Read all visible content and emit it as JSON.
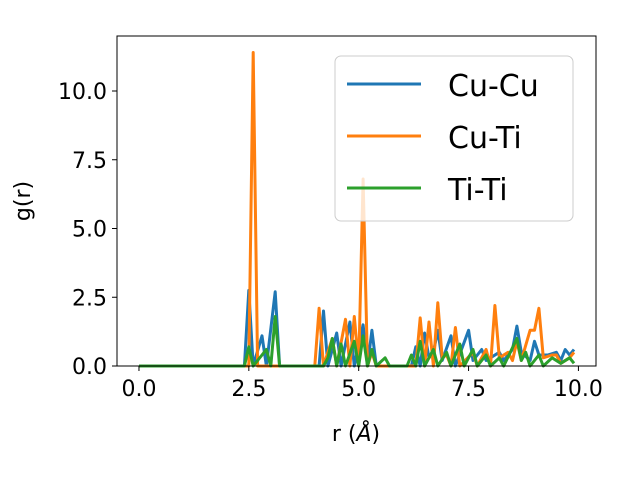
{
  "chart_data": {
    "type": "line",
    "xlabel": "r (",
    "xlabel_symbol": "Å",
    "xlabel_end": ")",
    "ylabel": "g(r)",
    "xlim": [
      -0.5,
      10.4
    ],
    "ylim": [
      0.0,
      12.0
    ],
    "xticks": [
      0.0,
      2.5,
      5.0,
      7.5,
      10.0
    ],
    "xtick_labels": [
      "0.0",
      "2.5",
      "5.0",
      "7.5",
      "10.0"
    ],
    "yticks": [
      0.0,
      2.5,
      5.0,
      7.5,
      10.0
    ],
    "ytick_labels": [
      "0.0",
      "2.5",
      "5.0",
      "7.5",
      "10.0"
    ],
    "grid": false,
    "legend_position": "top-right",
    "series": [
      {
        "name": "Cu-Cu",
        "color": "#1f77b4",
        "points": [
          [
            0.0,
            0
          ],
          [
            2.4,
            0
          ],
          [
            2.5,
            2.75
          ],
          [
            2.6,
            0
          ],
          [
            2.8,
            1.1
          ],
          [
            2.9,
            0
          ],
          [
            3.1,
            2.7
          ],
          [
            3.2,
            0
          ],
          [
            4.1,
            0
          ],
          [
            4.2,
            2.0
          ],
          [
            4.3,
            0
          ],
          [
            4.5,
            1.2
          ],
          [
            4.6,
            0
          ],
          [
            4.8,
            1.6
          ],
          [
            4.9,
            0
          ],
          [
            5.1,
            1.5
          ],
          [
            5.2,
            0
          ],
          [
            5.3,
            1.3
          ],
          [
            5.4,
            0
          ],
          [
            6.2,
            0
          ],
          [
            6.3,
            0.7
          ],
          [
            6.4,
            0
          ],
          [
            6.5,
            1.2
          ],
          [
            6.6,
            0.3
          ],
          [
            6.7,
            0.5
          ],
          [
            6.8,
            1.3
          ],
          [
            6.9,
            0.2
          ],
          [
            7.1,
            1.1
          ],
          [
            7.2,
            0
          ],
          [
            7.5,
            1.3
          ],
          [
            7.6,
            0.2
          ],
          [
            7.8,
            0.6
          ],
          [
            7.9,
            0.2
          ],
          [
            8.2,
            0.5
          ],
          [
            8.3,
            0.2
          ],
          [
            8.5,
            0.6
          ],
          [
            8.6,
            1.45
          ],
          [
            8.7,
            0.5
          ],
          [
            8.9,
            0.2
          ],
          [
            9.0,
            0.9
          ],
          [
            9.1,
            0.4
          ],
          [
            9.3,
            0.4
          ],
          [
            9.5,
            0.5
          ],
          [
            9.6,
            0.2
          ],
          [
            9.7,
            0.6
          ],
          [
            9.8,
            0.4
          ],
          [
            9.9,
            0.6
          ]
        ]
      },
      {
        "name": "Cu-Ti",
        "color": "#ff7f0e",
        "points": [
          [
            0.0,
            0
          ],
          [
            2.5,
            0
          ],
          [
            2.6,
            11.4
          ],
          [
            2.7,
            0
          ],
          [
            4.0,
            0
          ],
          [
            4.1,
            2.1
          ],
          [
            4.2,
            0
          ],
          [
            4.4,
            1.0
          ],
          [
            4.5,
            0
          ],
          [
            4.7,
            1.7
          ],
          [
            4.8,
            0
          ],
          [
            4.9,
            1.8
          ],
          [
            5.0,
            0
          ],
          [
            5.1,
            6.8
          ],
          [
            5.2,
            0
          ],
          [
            5.3,
            0.5
          ],
          [
            5.4,
            0
          ],
          [
            6.3,
            0
          ],
          [
            6.4,
            1.75
          ],
          [
            6.5,
            0
          ],
          [
            6.6,
            1.6
          ],
          [
            6.7,
            0
          ],
          [
            6.8,
            2.3
          ],
          [
            6.9,
            0.3
          ],
          [
            7.0,
            0.4
          ],
          [
            7.1,
            0
          ],
          [
            7.2,
            1.4
          ],
          [
            7.3,
            0
          ],
          [
            7.6,
            0.5
          ],
          [
            7.7,
            0
          ],
          [
            7.9,
            0.6
          ],
          [
            8.0,
            0
          ],
          [
            8.1,
            2.2
          ],
          [
            8.2,
            0.3
          ],
          [
            8.4,
            0.5
          ],
          [
            8.5,
            0.2
          ],
          [
            8.6,
            0.9
          ],
          [
            8.7,
            0.2
          ],
          [
            8.9,
            1.3
          ],
          [
            9.0,
            1.3
          ],
          [
            9.1,
            2.1
          ],
          [
            9.2,
            0.3
          ],
          [
            9.4,
            0.4
          ],
          [
            9.5,
            0.4
          ],
          [
            9.6,
            0.1
          ],
          [
            9.8,
            0.3
          ],
          [
            9.9,
            0.5
          ]
        ]
      },
      {
        "name": "Ti-Ti",
        "color": "#2ca02c",
        "points": [
          [
            0.0,
            0
          ],
          [
            2.4,
            0
          ],
          [
            2.5,
            0.7
          ],
          [
            2.6,
            0
          ],
          [
            2.9,
            0.6
          ],
          [
            3.0,
            0
          ],
          [
            3.1,
            1.8
          ],
          [
            3.2,
            0
          ],
          [
            4.2,
            0
          ],
          [
            4.3,
            0.3
          ],
          [
            4.4,
            1.0
          ],
          [
            4.5,
            0
          ],
          [
            4.6,
            0.8
          ],
          [
            4.7,
            0
          ],
          [
            4.9,
            0.9
          ],
          [
            5.0,
            0
          ],
          [
            5.1,
            1.1
          ],
          [
            5.2,
            0
          ],
          [
            5.3,
            0.6
          ],
          [
            5.4,
            0
          ],
          [
            5.6,
            0.3
          ],
          [
            5.7,
            0
          ],
          [
            6.1,
            0
          ],
          [
            6.2,
            0.4
          ],
          [
            6.3,
            0
          ],
          [
            6.4,
            0.9
          ],
          [
            6.5,
            0
          ],
          [
            6.7,
            0.6
          ],
          [
            6.8,
            0
          ],
          [
            7.0,
            0.5
          ],
          [
            7.1,
            0
          ],
          [
            7.3,
            0.8
          ],
          [
            7.4,
            0
          ],
          [
            7.6,
            0.6
          ],
          [
            7.7,
            0
          ],
          [
            7.9,
            0.4
          ],
          [
            8.0,
            0
          ],
          [
            8.2,
            0.3
          ],
          [
            8.3,
            0
          ],
          [
            8.6,
            1.0
          ],
          [
            8.7,
            0.2
          ],
          [
            8.8,
            0.5
          ],
          [
            8.9,
            0
          ],
          [
            9.1,
            0.4
          ],
          [
            9.2,
            0
          ],
          [
            9.4,
            0.3
          ],
          [
            9.6,
            0.1
          ],
          [
            9.8,
            0.3
          ],
          [
            9.9,
            0.1
          ]
        ]
      }
    ]
  }
}
